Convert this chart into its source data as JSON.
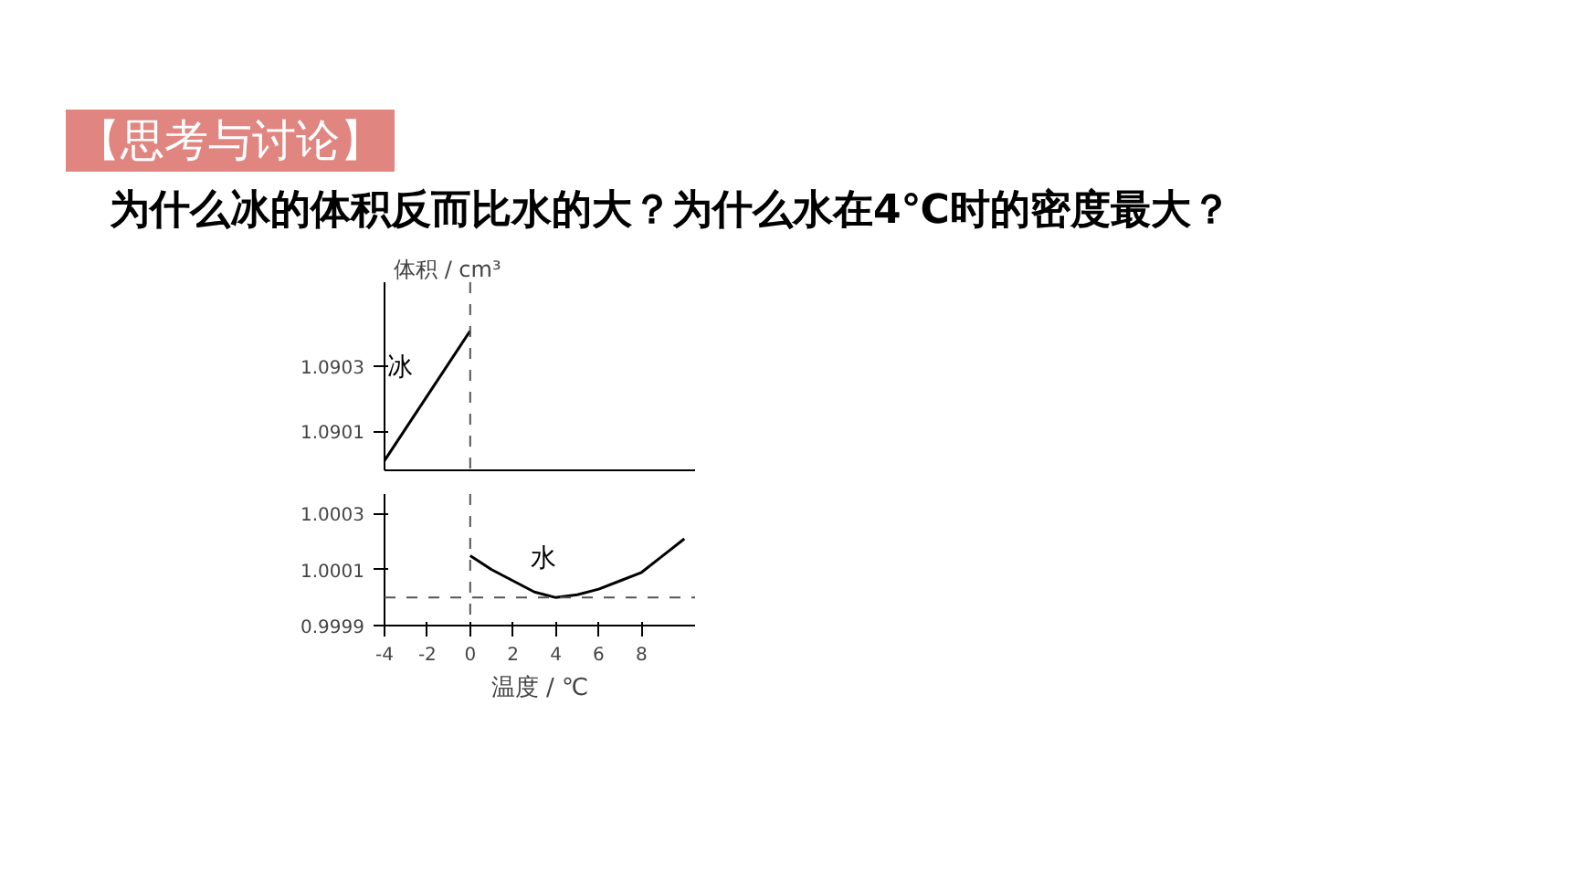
{
  "chart_data": [
    {
      "type": "line",
      "title": "【思考与讨论】",
      "subtitle": "为什么冰的体积反而比水的大？为什么水在4℃时的密度最大？",
      "ylabel": "体积 / cm³",
      "xlim": [
        -4,
        10.5
      ],
      "ylim": [
        1.08998,
        1.09056
      ],
      "yticks": [
        1.0901,
        1.0903
      ],
      "tick_labels": "y",
      "grid": false,
      "marker": "none",
      "line_style": "solid",
      "series": [
        {
          "name": "冰",
          "color": "#000000",
          "x": [
            -4,
            0
          ],
          "values": [
            1.09001,
            1.09041
          ]
        }
      ],
      "ref_lines": [
        {
          "axis": "x",
          "value": 0,
          "color": "#555555",
          "line_style": "dashed"
        }
      ]
    },
    {
      "type": "line",
      "xlabel": "温度 / ℃",
      "xlim": [
        -4,
        10.5
      ],
      "xticks": [
        -4,
        -2,
        0,
        2,
        4,
        6,
        8
      ],
      "ylim": [
        0.9999,
        1.00037
      ],
      "yticks": [
        0.9999,
        1.0001,
        1.0003
      ],
      "grid": false,
      "marker": "none",
      "line_style": "solid",
      "series": [
        {
          "name": "水",
          "color": "#000000",
          "x": [
            0,
            1,
            2,
            3,
            4,
            5,
            6,
            7,
            8,
            9,
            10
          ],
          "values": [
            1.00015,
            1.0001,
            1.00006,
            1.00002,
            1.0,
            1.00001,
            1.00003,
            1.00006,
            1.00009,
            1.00015,
            1.00021
          ]
        }
      ],
      "ref_lines": [
        {
          "axis": "x",
          "value": 0,
          "color": "#555555",
          "line_style": "dashed"
        },
        {
          "axis": "y",
          "value": 1.0,
          "color": "#555555",
          "line_style": "dashed"
        }
      ]
    }
  ]
}
